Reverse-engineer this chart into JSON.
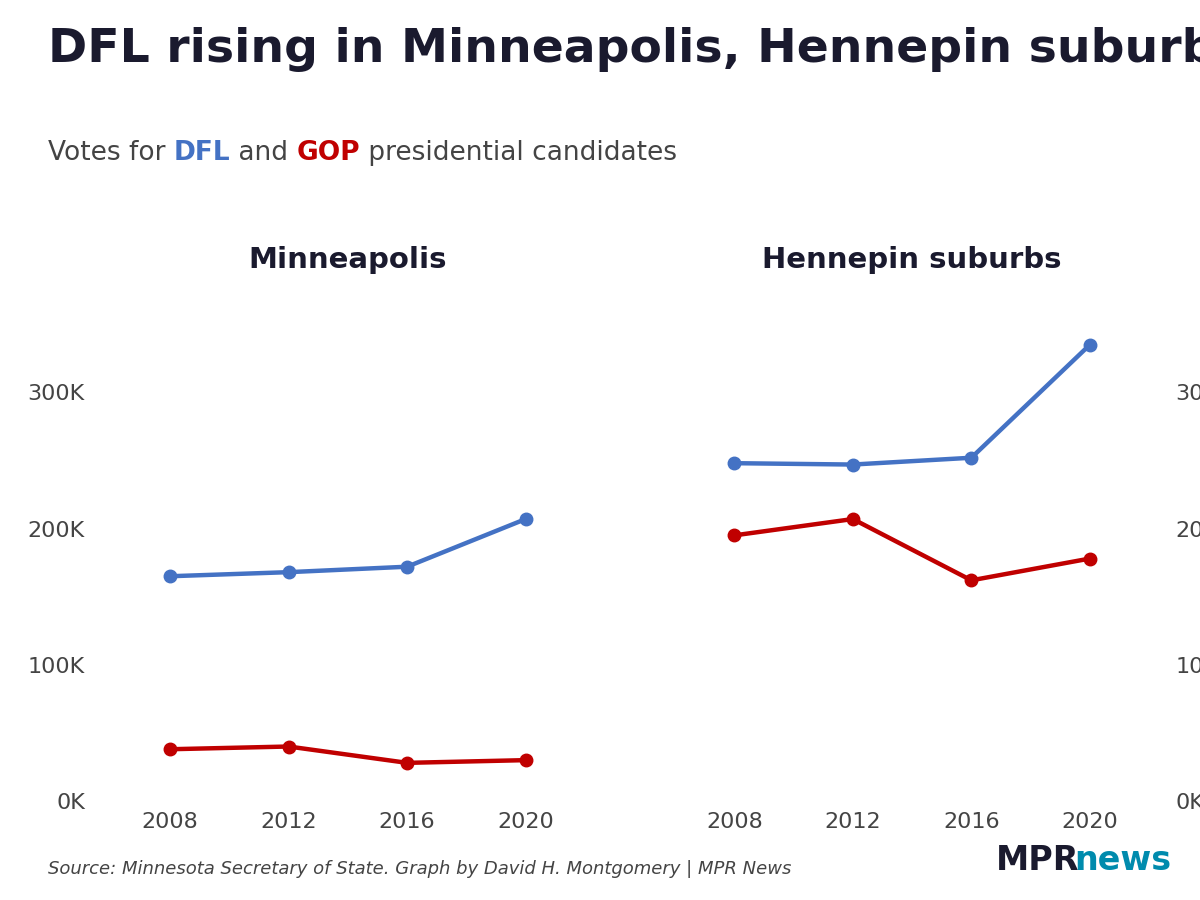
{
  "title": "DFL rising in Minneapolis, Hennepin suburbs",
  "panel1_title": "Minneapolis",
  "panel2_title": "Hennepin suburbs",
  "years": [
    2008,
    2012,
    2016,
    2020
  ],
  "minneapolis_dfl": [
    165000,
    168000,
    172000,
    207000
  ],
  "minneapolis_gop": [
    38000,
    40000,
    28000,
    30000
  ],
  "hennepin_dfl": [
    248000,
    247000,
    252000,
    335000
  ],
  "hennepin_gop": [
    195000,
    207000,
    162000,
    178000
  ],
  "dfl_color": "#4472C4",
  "gop_color": "#C00000",
  "line_width": 3.2,
  "marker_size": 9,
  "ylim": [
    0,
    370000
  ],
  "yticks": [
    0,
    100000,
    200000,
    300000
  ],
  "ytick_labels": [
    "0K",
    "100K",
    "200K",
    "300K"
  ],
  "source_text": "Source: Minnesota Secretary of State. Graph by David H. Montgomery | MPR News",
  "background_color": "#ffffff",
  "title_fontsize": 34,
  "subtitle_fontsize": 19,
  "panel_title_fontsize": 21,
  "tick_fontsize": 16,
  "source_fontsize": 13,
  "text_dark": "#1a1a2e",
  "text_mid": "#444444",
  "mpr_color": "#1a1a2e",
  "news_color": "#008BAD"
}
